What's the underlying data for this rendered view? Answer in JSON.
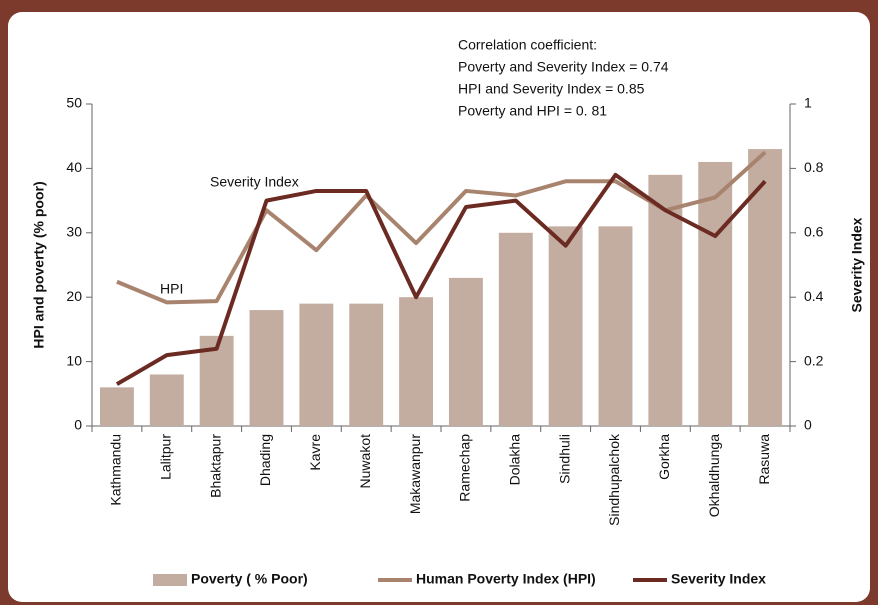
{
  "chart_data": {
    "type": "bar-line",
    "ylabel": "HPI and poverty (% poor)",
    "y2label": "Severity Index",
    "categories": [
      "Kathmandu",
      "Lalitpur",
      "Bhaktapur",
      "Dhading",
      "Kavre",
      "Nuwakot",
      "Makawanpur",
      "Ramechap",
      "Dolakha",
      "Sindhuli",
      "Sindhupalchok",
      "Gorkha",
      "Okhaldhunga",
      "Rasuwa"
    ],
    "series": [
      {
        "name": "Poverty ( % Poor)",
        "type": "bar",
        "color": "#c3aca0",
        "values": [
          6,
          8,
          14,
          18,
          19,
          19,
          20,
          23,
          30,
          31,
          31,
          39,
          41,
          43
        ]
      },
      {
        "name": "Human Poverty Index (HPI)",
        "type": "line",
        "color": "#a8846f",
        "values": [
          22.4,
          19.2,
          19.4,
          33.5,
          27.3,
          35.8,
          28.4,
          36.5,
          35.8,
          38,
          38,
          33.5,
          35.5,
          42.5
        ]
      },
      {
        "name": "Severity Index",
        "type": "line",
        "axis": "y2",
        "color": "#6b2a22",
        "values": [
          0.13,
          0.22,
          0.24,
          0.7,
          0.73,
          0.73,
          0.4,
          0.68,
          0.7,
          0.56,
          0.78,
          0.67,
          0.59,
          0.76
        ]
      }
    ],
    "ylim": [
      0,
      50
    ],
    "yticks": [
      0,
      10,
      20,
      30,
      40,
      50
    ],
    "y2lim": [
      0,
      1
    ],
    "y2ticks": [
      0,
      0.2,
      0.4,
      0.6,
      0.8,
      1
    ],
    "annotations": [
      "Severity Index",
      "HPI"
    ],
    "note": [
      "Correlation coefficient:",
      "Poverty and Severity Index  =  0.74",
      "HPI and Severity Index = 0.85",
      "Poverty and HPI  = 0. 81"
    ],
    "legend": "bottom"
  }
}
